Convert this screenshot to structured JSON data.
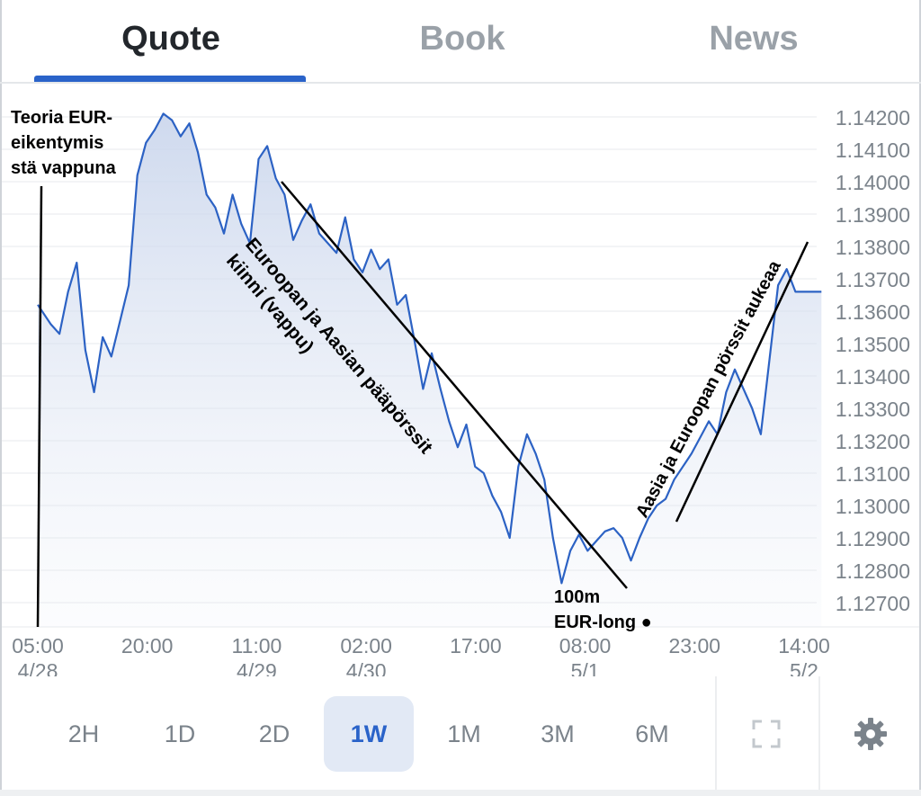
{
  "tabs": [
    {
      "label": "Quote",
      "active": true
    },
    {
      "label": "Book",
      "active": false
    },
    {
      "label": "News",
      "active": false
    }
  ],
  "ranges": [
    {
      "label": "2H",
      "active": false
    },
    {
      "label": "1D",
      "active": false
    },
    {
      "label": "2D",
      "active": false
    },
    {
      "label": "1W",
      "active": true
    },
    {
      "label": "1M",
      "active": false
    },
    {
      "label": "3M",
      "active": false
    },
    {
      "label": "6M",
      "active": false
    }
  ],
  "tools": {
    "fullscreen_icon": "fullscreen-icon",
    "settings_icon": "gear-icon"
  },
  "colors": {
    "accent": "#2a63c9",
    "line": "#2c62c4",
    "fill": "#e8edf6",
    "annotation": "#000000"
  },
  "chart_data": {
    "type": "line",
    "y_ticks": [
      "1.14200",
      "1.14100",
      "1.14000",
      "1.13900",
      "1.13800",
      "1.13700",
      "1.13600",
      "1.13500",
      "1.13400",
      "1.13300",
      "1.13200",
      "1.13100",
      "1.13000",
      "1.12900",
      "1.12800",
      "1.12700"
    ],
    "ylim": [
      1.1265,
      1.1425
    ],
    "x_ticks": [
      {
        "time": "05:00",
        "date": "4/28"
      },
      {
        "time": "20:00",
        "date": ""
      },
      {
        "time": "11:00",
        "date": "4/29"
      },
      {
        "time": "02:00",
        "date": "4/30"
      },
      {
        "time": "17:00",
        "date": ""
      },
      {
        "time": "08:00",
        "date": "5/1"
      },
      {
        "time": "23:00",
        "date": ""
      },
      {
        "time": "14:00",
        "date": "5/2"
      }
    ],
    "grid": true,
    "area_fill": true,
    "series": [
      {
        "x_hours": [
          0,
          3,
          5,
          7,
          9,
          11,
          13,
          15,
          17,
          19,
          21,
          23,
          25,
          27,
          29,
          31,
          33,
          35,
          37,
          39,
          41,
          43,
          45,
          47,
          49,
          51,
          53,
          55,
          57,
          59,
          61,
          63,
          65,
          67,
          69,
          71,
          73,
          75,
          77,
          79,
          81,
          83,
          85,
          87,
          89,
          91,
          93,
          95,
          97,
          99,
          101,
          103,
          105,
          107,
          109,
          111,
          113,
          115,
          117,
          119,
          121,
          123,
          125,
          127,
          129,
          131,
          133,
          135,
          137,
          139,
          141,
          143,
          145,
          147,
          149,
          151,
          153,
          155,
          157,
          159,
          161,
          163,
          165,
          167,
          169,
          171,
          173,
          175,
          177,
          179,
          181
        ],
        "values": [
          1.1362,
          1.1356,
          1.1353,
          1.1366,
          1.1375,
          1.1348,
          1.1335,
          1.1352,
          1.1346,
          1.1357,
          1.1368,
          1.1402,
          1.1412,
          1.1416,
          1.1421,
          1.1419,
          1.1414,
          1.1418,
          1.1409,
          1.1396,
          1.1392,
          1.1384,
          1.1396,
          1.1387,
          1.1381,
          1.1407,
          1.1411,
          1.1401,
          1.1396,
          1.1382,
          1.1388,
          1.1393,
          1.1384,
          1.1381,
          1.1378,
          1.1389,
          1.1376,
          1.1372,
          1.1379,
          1.1373,
          1.1376,
          1.1362,
          1.1365,
          1.1351,
          1.1336,
          1.1347,
          1.1336,
          1.1326,
          1.1318,
          1.1325,
          1.1312,
          1.131,
          1.1303,
          1.1298,
          1.129,
          1.1312,
          1.1322,
          1.1316,
          1.1308,
          1.129,
          1.1276,
          1.1286,
          1.1291,
          1.1286,
          1.1289,
          1.1292,
          1.1293,
          1.129,
          1.1283,
          1.129,
          1.1296,
          1.13,
          1.1302,
          1.1308,
          1.1312,
          1.1316,
          1.1321,
          1.1326,
          1.1322,
          1.1335,
          1.1342,
          1.1336,
          1.133,
          1.1322,
          1.1345,
          1.1368,
          1.1373,
          1.1366,
          1.1366,
          1.1366,
          1.1366
        ]
      }
    ],
    "annotations": [
      "Teoria EUR-heikentymis estä vappuna",
      "Euroopan ja Aasian pääpörssit kiinni (vappu)",
      "Aasia ja Euroopan pörssit aukeaa",
      "100m EUR-long ●"
    ]
  }
}
